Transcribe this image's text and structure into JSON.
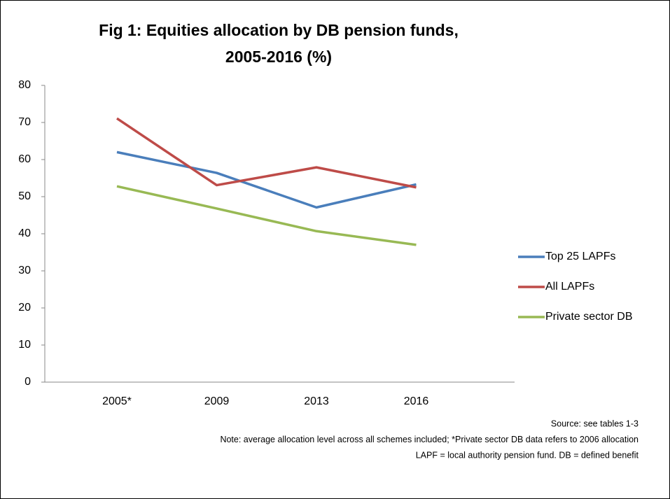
{
  "chart_data": {
    "type": "line",
    "title": [
      "Fig 1: Equities allocation by DB pension funds,",
      "2005-2016 (%)"
    ],
    "categories": [
      "2005*",
      "2009",
      "2013",
      "2016"
    ],
    "series": [
      {
        "name": "Top 25 LAPFs",
        "color": "#4a7ebb",
        "values": [
          62,
          56.4,
          47.1,
          53.3
        ]
      },
      {
        "name": "All LAPFs",
        "color": "#be4b48",
        "values": [
          71.1,
          53.1,
          57.9,
          52.5
        ]
      },
      {
        "name": "Private sector DB",
        "color": "#98b954",
        "values": [
          52.8,
          46.8,
          40.7,
          37
        ]
      }
    ],
    "ylim": [
      0,
      80
    ],
    "yticks": [
      0,
      10,
      20,
      30,
      40,
      50,
      60,
      70,
      80
    ],
    "grid": false,
    "legend": "right",
    "notes": [
      "Source: see tables 1-3",
      "Note: average allocation level across all schemes included; *Private sector DB data refers to 2006 allocation",
      "LAPF = local authority pension fund. DB = defined benefit"
    ]
  }
}
